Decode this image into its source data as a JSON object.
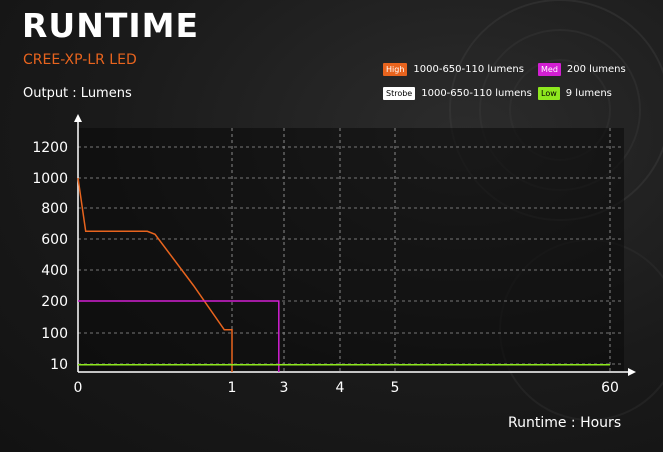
{
  "header": {
    "title": "RUNTIME",
    "subtitle": "CREE-XP-LR LED"
  },
  "legend": [
    {
      "badge": "High",
      "text": "1000-650-110 lumens",
      "color": "#e8641e",
      "badge_text_color": "#ffffff"
    },
    {
      "badge": "Med",
      "text": "200 lumens",
      "color": "#d21fd2",
      "badge_text_color": "#ffffff"
    },
    {
      "badge": "Strobe",
      "text": "1000-650-110 lumens",
      "color": "#ffffff",
      "badge_text_color": "#000000"
    },
    {
      "badge": "Low",
      "text": "9 lumens",
      "color": "#8ee81e",
      "badge_text_color": "#000000"
    }
  ],
  "chart_data": {
    "type": "line",
    "xlabel": "Runtime : Hours",
    "ylabel": "Output : Lumens",
    "x_ticks": [
      "0",
      "1",
      "3",
      "4",
      "5",
      "60"
    ],
    "y_ticks": [
      "10",
      "100",
      "200",
      "400",
      "600",
      "800",
      "1000",
      "1200"
    ],
    "x_scale": "piecewise-nonlinear",
    "y_scale": "piecewise-nonlinear",
    "grid": true,
    "series": [
      {
        "name": "High",
        "color": "#e8641e",
        "x": [
          0,
          0.05,
          0.45,
          0.5,
          0.75,
          0.95,
          1,
          1
        ],
        "y": [
          1000,
          650,
          650,
          630,
          300,
          110,
          110,
          0
        ]
      },
      {
        "name": "Med",
        "color": "#d21fd2",
        "x": [
          0,
          2.8,
          2.8
        ],
        "y": [
          200,
          200,
          0
        ]
      },
      {
        "name": "Low",
        "color": "#8ee81e",
        "x": [
          0,
          60
        ],
        "y": [
          9,
          9
        ]
      }
    ]
  }
}
